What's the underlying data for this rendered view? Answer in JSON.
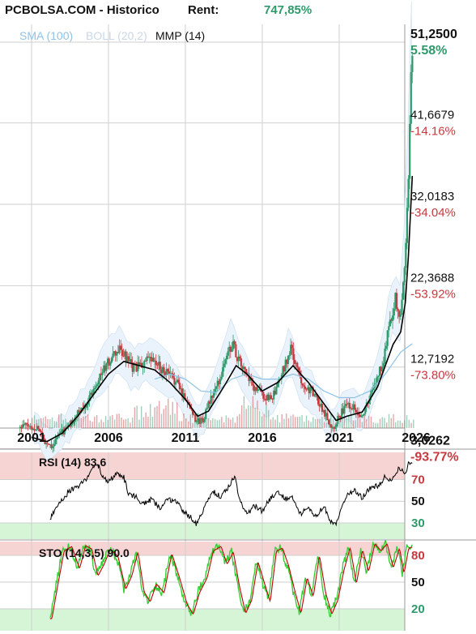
{
  "header": {
    "title": "PCBOLSA.COM - Historico",
    "rent_label": "Rent:",
    "rent_value": "747,85%"
  },
  "colors": {
    "up": "#2e9a6a",
    "down": "#c8393f",
    "sma": "#8ec3e6",
    "boll": "#cfe0f0",
    "mmp": "#000000",
    "rsi_line": "#000000",
    "sto_k": "#35d035",
    "sto_d": "#c00000",
    "zone_high": "#f7d4d4",
    "zone_low": "#d6f5d6",
    "grid": "#cfcfcf",
    "pct_pos": "#2e9a6a",
    "pct_neg": "#c8393f"
  },
  "chart_data": [
    {
      "type": "candlestick",
      "legend": [
        "SMA (100)",
        "BOLL (20,2)",
        "MMP (14)"
      ],
      "x_ticks": [
        "2001",
        "2006",
        "2011",
        "2016",
        "2021",
        "2026"
      ],
      "x_range": [
        2000,
        2026
      ],
      "y_ticks": [
        {
          "value": "51,2500",
          "pct": "5.58%"
        },
        {
          "value": "41,6679",
          "pct": "-14.16%"
        },
        {
          "value": "32,0183",
          "pct": "-34.04%"
        },
        {
          "value": "22,3688",
          "pct": "-53.92%"
        },
        {
          "value": "12,7192",
          "pct": "-73.80%"
        },
        {
          "value": "3,0262",
          "pct": "-93.77%"
        }
      ],
      "ylim": [
        0.5,
        54
      ],
      "price_path": [
        [
          2000.2,
          5.2
        ],
        [
          2000.6,
          5.6
        ],
        [
          2001.0,
          5.1
        ],
        [
          2001.4,
          5.3
        ],
        [
          2001.8,
          3.6
        ],
        [
          2002.3,
          3.1
        ],
        [
          2002.8,
          4.6
        ],
        [
          2003.3,
          5.2
        ],
        [
          2003.8,
          6.6
        ],
        [
          2004.3,
          7.6
        ],
        [
          2004.8,
          9.2
        ],
        [
          2005.3,
          11.2
        ],
        [
          2005.8,
          12.6
        ],
        [
          2006.3,
          13.8
        ],
        [
          2006.7,
          14.5
        ],
        [
          2007.1,
          13.4
        ],
        [
          2007.5,
          12.3
        ],
        [
          2008.0,
          12.5
        ],
        [
          2008.4,
          13.2
        ],
        [
          2008.8,
          13.1
        ],
        [
          2009.3,
          12.4
        ],
        [
          2009.8,
          11.6
        ],
        [
          2010.3,
          10.8
        ],
        [
          2010.8,
          9.2
        ],
        [
          2011.3,
          7.6
        ],
        [
          2011.7,
          5.9
        ],
        [
          2012.1,
          6.3
        ],
        [
          2012.6,
          8.6
        ],
        [
          2013.1,
          10.6
        ],
        [
          2013.6,
          13.6
        ],
        [
          2014.0,
          15.3
        ],
        [
          2014.4,
          13.2
        ],
        [
          2014.9,
          11.6
        ],
        [
          2015.3,
          10.1
        ],
        [
          2015.8,
          9.4
        ],
        [
          2016.3,
          8.6
        ],
        [
          2016.8,
          9.3
        ],
        [
          2017.3,
          12.1
        ],
        [
          2017.8,
          14.6
        ],
        [
          2018.2,
          12.1
        ],
        [
          2018.7,
          10.1
        ],
        [
          2019.1,
          9.7
        ],
        [
          2019.6,
          8.3
        ],
        [
          2020.1,
          6.6
        ],
        [
          2020.5,
          5.2
        ],
        [
          2021.0,
          6.8
        ],
        [
          2021.5,
          8.1
        ],
        [
          2022.0,
          7.6
        ],
        [
          2022.4,
          6.6
        ],
        [
          2022.9,
          8.6
        ],
        [
          2023.3,
          10.6
        ],
        [
          2023.8,
          13.1
        ],
        [
          2024.2,
          17.6
        ],
        [
          2024.6,
          20.6
        ],
        [
          2024.9,
          17.6
        ],
        [
          2025.2,
          24.6
        ],
        [
          2025.45,
          35.6
        ],
        [
          2025.62,
          46.6
        ],
        [
          2025.75,
          51.0
        ]
      ],
      "sma_path": [
        [
          2009.0,
          11.0
        ],
        [
          2010.0,
          11.6
        ],
        [
          2011.0,
          11.0
        ],
        [
          2012.0,
          9.6
        ],
        [
          2013.0,
          9.4
        ],
        [
          2014.0,
          11.0
        ],
        [
          2015.0,
          11.6
        ],
        [
          2016.0,
          11.0
        ],
        [
          2017.0,
          11.0
        ],
        [
          2018.0,
          11.6
        ],
        [
          2019.0,
          11.0
        ],
        [
          2020.0,
          9.6
        ],
        [
          2021.0,
          8.8
        ],
        [
          2022.0,
          8.8
        ],
        [
          2023.0,
          9.6
        ],
        [
          2024.0,
          11.6
        ],
        [
          2025.0,
          14.2
        ],
        [
          2025.75,
          15.2
        ]
      ],
      "mmp_path": [
        [
          2001.0,
          4.1
        ],
        [
          2002.0,
          3.6
        ],
        [
          2003.0,
          4.6
        ],
        [
          2004.0,
          6.6
        ],
        [
          2005.0,
          9.1
        ],
        [
          2006.0,
          11.6
        ],
        [
          2007.0,
          13.1
        ],
        [
          2008.0,
          12.6
        ],
        [
          2009.0,
          12.1
        ],
        [
          2010.0,
          10.6
        ],
        [
          2011.0,
          8.6
        ],
        [
          2011.8,
          6.6
        ],
        [
          2012.5,
          7.2
        ],
        [
          2013.5,
          10.1
        ],
        [
          2014.3,
          12.6
        ],
        [
          2015.0,
          11.6
        ],
        [
          2016.0,
          9.6
        ],
        [
          2017.0,
          10.6
        ],
        [
          2018.0,
          12.6
        ],
        [
          2019.0,
          10.6
        ],
        [
          2020.0,
          8.1
        ],
        [
          2020.8,
          6.1
        ],
        [
          2021.5,
          6.6
        ],
        [
          2022.5,
          7.1
        ],
        [
          2023.5,
          10.1
        ],
        [
          2024.5,
          15.1
        ],
        [
          2025.0,
          16.6
        ],
        [
          2025.3,
          20.1
        ],
        [
          2025.5,
          25.6
        ],
        [
          2025.75,
          35.1
        ]
      ],
      "volume": "relative volume bars, small except higher activity around 2008-2010 and 2014-2016"
    },
    {
      "type": "line",
      "name": "RSI (14)",
      "label": "RSI (14) 83.6",
      "levels": [
        "70",
        "50",
        "30"
      ],
      "ylim": [
        15,
        95
      ],
      "values": [
        [
          2002.2,
          33
        ],
        [
          2002.6,
          45
        ],
        [
          2003.0,
          52
        ],
        [
          2003.5,
          60
        ],
        [
          2004.0,
          63
        ],
        [
          2004.5,
          70
        ],
        [
          2005.0,
          80
        ],
        [
          2005.3,
          85
        ],
        [
          2005.6,
          72
        ],
        [
          2006.0,
          68
        ],
        [
          2006.5,
          75
        ],
        [
          2007.0,
          72
        ],
        [
          2007.3,
          57
        ],
        [
          2007.8,
          54
        ],
        [
          2008.3,
          47
        ],
        [
          2008.8,
          52
        ],
        [
          2009.3,
          44
        ],
        [
          2009.8,
          50
        ],
        [
          2010.3,
          52
        ],
        [
          2010.8,
          42
        ],
        [
          2011.3,
          36
        ],
        [
          2011.7,
          29
        ],
        [
          2012.2,
          43
        ],
        [
          2012.8,
          59
        ],
        [
          2013.3,
          54
        ],
        [
          2013.8,
          63
        ],
        [
          2014.2,
          73
        ],
        [
          2014.6,
          48
        ],
        [
          2015.0,
          38
        ],
        [
          2015.5,
          46
        ],
        [
          2016.0,
          41
        ],
        [
          2016.5,
          52
        ],
        [
          2017.0,
          59
        ],
        [
          2017.5,
          52
        ],
        [
          2018.0,
          53
        ],
        [
          2018.5,
          38
        ],
        [
          2019.0,
          44
        ],
        [
          2019.5,
          36
        ],
        [
          2020.0,
          46
        ],
        [
          2020.4,
          32
        ],
        [
          2020.8,
          29
        ],
        [
          2021.2,
          47
        ],
        [
          2021.6,
          57
        ],
        [
          2022.0,
          60
        ],
        [
          2022.5,
          53
        ],
        [
          2023.0,
          62
        ],
        [
          2023.5,
          64
        ],
        [
          2024.0,
          73
        ],
        [
          2024.4,
          68
        ],
        [
          2024.7,
          78
        ],
        [
          2025.0,
          80
        ],
        [
          2025.3,
          74
        ],
        [
          2025.5,
          87
        ],
        [
          2025.75,
          84
        ]
      ]
    },
    {
      "type": "line",
      "name": "STO (14,3,5)",
      "label": "STO (14,3,5) 90.0",
      "levels": [
        "80",
        "50",
        "20"
      ],
      "ylim": [
        0,
        100
      ],
      "values": [
        [
          2002.2,
          9
        ],
        [
          2002.6,
          48
        ],
        [
          2003.0,
          85
        ],
        [
          2003.5,
          90
        ],
        [
          2004.0,
          65
        ],
        [
          2004.4,
          91
        ],
        [
          2004.8,
          87
        ],
        [
          2005.2,
          57
        ],
        [
          2005.6,
          70
        ],
        [
          2006.0,
          87
        ],
        [
          2006.5,
          79
        ],
        [
          2007.0,
          42
        ],
        [
          2007.4,
          57
        ],
        [
          2007.8,
          84
        ],
        [
          2008.2,
          39
        ],
        [
          2008.6,
          28
        ],
        [
          2009.0,
          48
        ],
        [
          2009.5,
          38
        ],
        [
          2010.0,
          82
        ],
        [
          2010.5,
          55
        ],
        [
          2011.0,
          25
        ],
        [
          2011.4,
          14
        ],
        [
          2011.8,
          38
        ],
        [
          2012.3,
          55
        ],
        [
          2012.7,
          85
        ],
        [
          2013.2,
          90
        ],
        [
          2013.6,
          70
        ],
        [
          2014.0,
          84
        ],
        [
          2014.4,
          45
        ],
        [
          2014.8,
          15
        ],
        [
          2015.2,
          30
        ],
        [
          2015.6,
          73
        ],
        [
          2016.0,
          50
        ],
        [
          2016.4,
          28
        ],
        [
          2016.8,
          85
        ],
        [
          2017.2,
          88
        ],
        [
          2017.6,
          68
        ],
        [
          2018.0,
          40
        ],
        [
          2018.4,
          15
        ],
        [
          2018.8,
          55
        ],
        [
          2019.2,
          34
        ],
        [
          2019.6,
          80
        ],
        [
          2020.0,
          38
        ],
        [
          2020.4,
          14
        ],
        [
          2020.8,
          30
        ],
        [
          2021.2,
          64
        ],
        [
          2021.6,
          89
        ],
        [
          2022.0,
          48
        ],
        [
          2022.4,
          86
        ],
        [
          2022.8,
          62
        ],
        [
          2023.2,
          93
        ],
        [
          2023.6,
          85
        ],
        [
          2024.0,
          93
        ],
        [
          2024.4,
          66
        ],
        [
          2024.8,
          88
        ],
        [
          2025.1,
          60
        ],
        [
          2025.4,
          88
        ],
        [
          2025.75,
          90
        ]
      ]
    }
  ]
}
